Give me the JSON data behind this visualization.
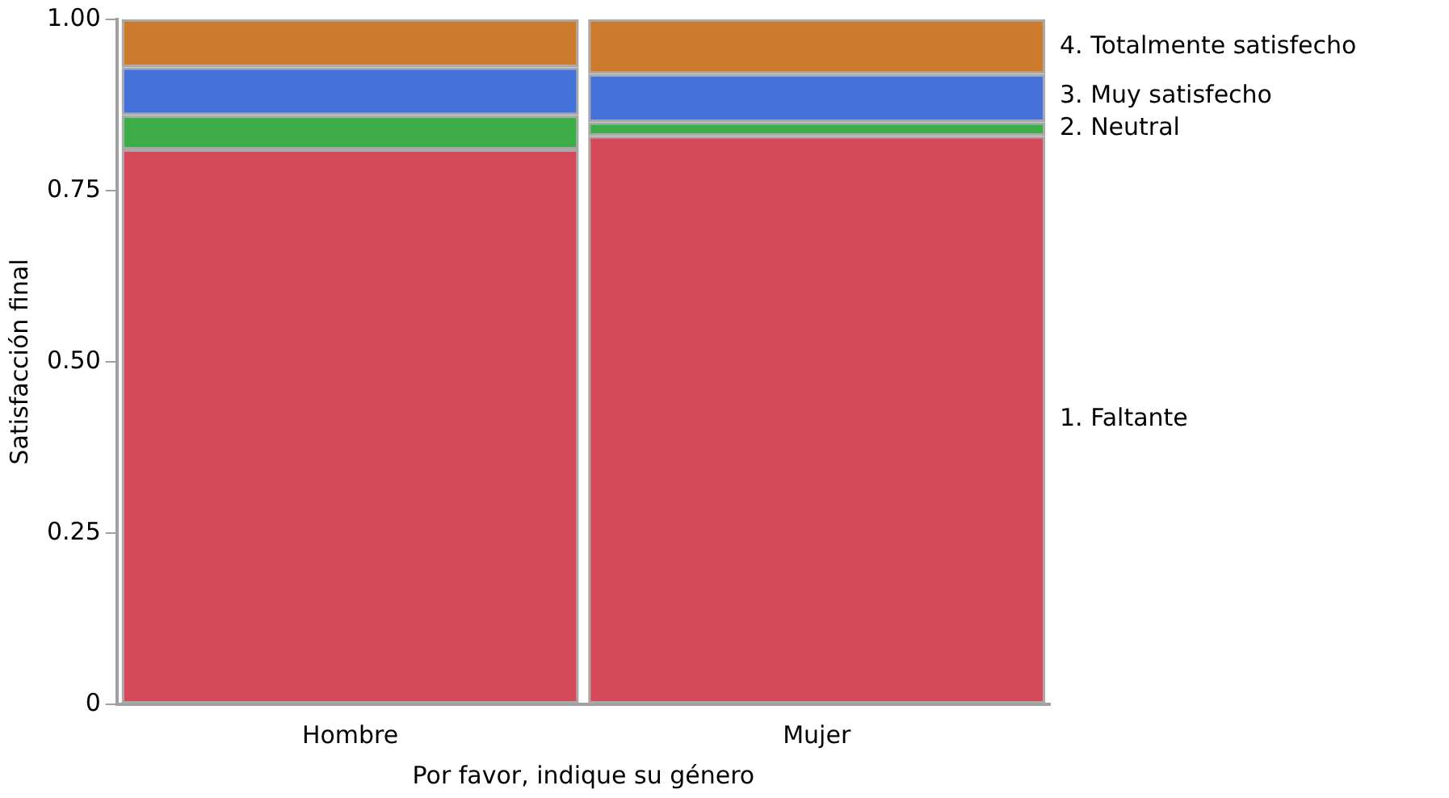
{
  "chart_data": [
    {
      "type": "bar",
      "stacked": true,
      "xlabel": "Por favor, indique su género",
      "ylabel": "Satisfacción final",
      "categories": [
        "Hombre",
        "Mujer"
      ],
      "ylim": [
        0,
        1
      ],
      "yticks": [
        {
          "value": 0,
          "label": "0"
        },
        0.25,
        {
          "value": 0.5,
          "label": "0.50"
        },
        0.75,
        {
          "value": 1,
          "label": "1.00"
        }
      ],
      "grid": false,
      "legend": false,
      "series": [
        {
          "name": "1. Faltante",
          "color": "#d44a5a",
          "values": [
            0.81,
            0.83
          ]
        },
        {
          "name": "2. Neutral",
          "color": "#3cad48",
          "values": [
            0.05,
            0.02
          ]
        },
        {
          "name": "3. Muy satisfecho",
          "color": "#4472d9",
          "values": [
            0.07,
            0.07
          ]
        },
        {
          "name": "4. Totalmente satisfecho",
          "color": "#cc7a2c",
          "values": [
            0.07,
            0.08
          ]
        }
      ]
    }
  ]
}
